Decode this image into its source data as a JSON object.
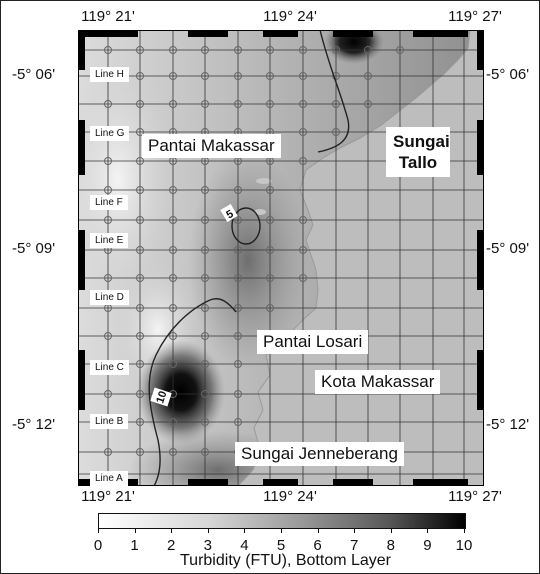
{
  "map": {
    "top_lon_labels": [
      "119° 21'",
      "119° 24'",
      "119° 27'"
    ],
    "bottom_lon_labels": [
      "119° 21'",
      "119° 24'",
      "119° 27'"
    ],
    "left_lat_labels": [
      "-5° 06'",
      "-5° 09'",
      "-5° 12'"
    ],
    "right_lat_labels": [
      "-5° 06'",
      "-5° 09'",
      "-5° 12'"
    ],
    "places": {
      "pantai_makassar": "Pantai Makassar",
      "sungai_tallo": "Sungai Tallo",
      "pantai_losari": "Pantai Losari",
      "kota_makassar": "Kota Makassar",
      "sungai_jenneberang": "Sungai Jenneberang"
    },
    "survey_lines": [
      "Line H",
      "Line G",
      "Line F",
      "Line E",
      "Line D",
      "Line C",
      "Line B",
      "Line A"
    ],
    "contour_labels": [
      "5",
      "10"
    ],
    "colors": {
      "land": "#bdbdbd",
      "frame": "#000000"
    }
  },
  "colorbar": {
    "ticks": [
      "0",
      "1",
      "2",
      "3",
      "4",
      "5",
      "6",
      "7",
      "8",
      "9",
      "10"
    ],
    "title": "Turbidity (FTU), Bottom Layer",
    "range": [
      0,
      10
    ]
  }
}
